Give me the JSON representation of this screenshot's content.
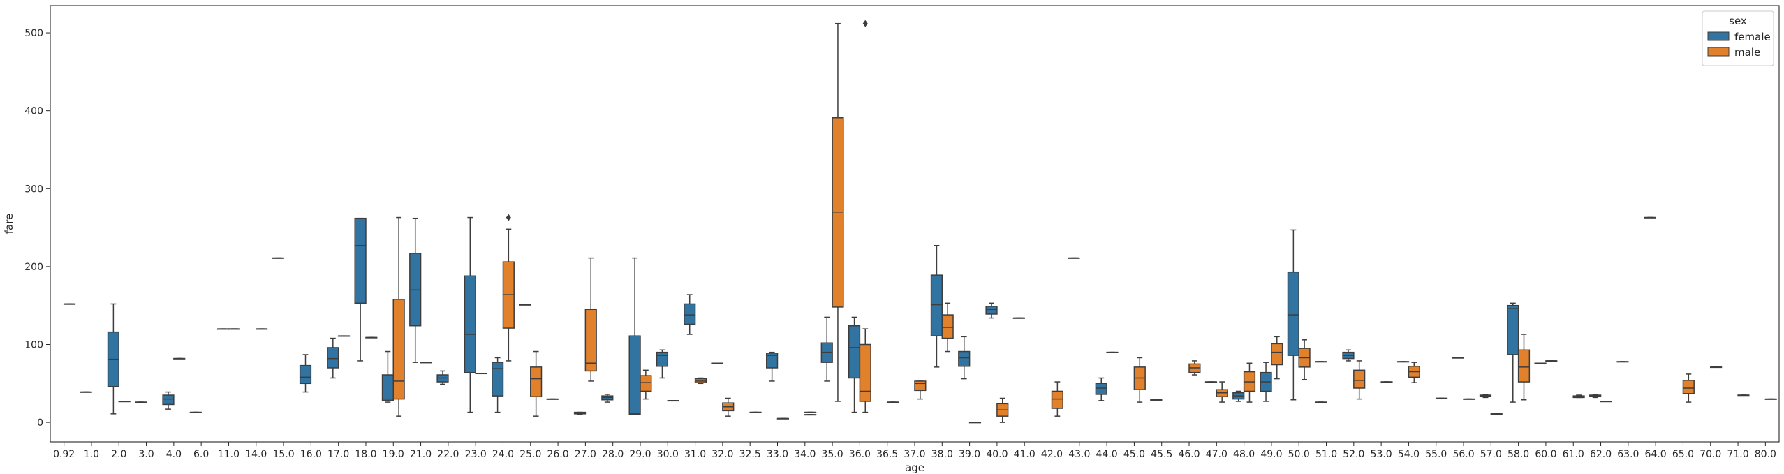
{
  "chart_data": {
    "type": "box",
    "xlabel": "age",
    "ylabel": "fare",
    "ylim": [
      -25,
      535
    ],
    "yticks": [
      0,
      100,
      200,
      300,
      400,
      500
    ],
    "categories": [
      "0.92",
      "1.0",
      "2.0",
      "3.0",
      "4.0",
      "6.0",
      "11.0",
      "14.0",
      "15.0",
      "16.0",
      "17.0",
      "18.0",
      "19.0",
      "21.0",
      "22.0",
      "23.0",
      "24.0",
      "25.0",
      "26.0",
      "27.0",
      "28.0",
      "29.0",
      "30.0",
      "31.0",
      "32.0",
      "32.5",
      "33.0",
      "34.0",
      "35.0",
      "36.0",
      "36.5",
      "37.0",
      "38.0",
      "39.0",
      "40.0",
      "41.0",
      "42.0",
      "43.0",
      "44.0",
      "45.0",
      "45.5",
      "46.0",
      "47.0",
      "48.0",
      "49.0",
      "50.0",
      "51.0",
      "52.0",
      "53.0",
      "54.0",
      "55.0",
      "56.0",
      "57.0",
      "58.0",
      "60.0",
      "61.0",
      "62.0",
      "63.0",
      "64.0",
      "65.0",
      "70.0",
      "71.0",
      "80.0"
    ],
    "legend": {
      "title": "sex",
      "position": "top-right"
    },
    "colors": {
      "female": "#3274a1",
      "male": "#e1812c"
    },
    "series": [
      {
        "name": "female",
        "boxes": [
          {
            "x": "1.0",
            "q1": 39,
            "med": 39,
            "q3": 39,
            "wlo": 39,
            "whi": 39
          },
          {
            "x": "2.0",
            "q1": 46,
            "med": 81,
            "q3": 116,
            "wlo": 11,
            "whi": 152
          },
          {
            "x": "3.0",
            "q1": 26,
            "med": 26,
            "q3": 26,
            "wlo": 26,
            "whi": 26
          },
          {
            "x": "4.0",
            "q1": 23,
            "med": 30,
            "q3": 35,
            "wlo": 17,
            "whi": 39
          },
          {
            "x": "6.0",
            "q1": 13,
            "med": 13,
            "q3": 13,
            "wlo": 13,
            "whi": 13
          },
          {
            "x": "11.0",
            "q1": 120,
            "med": 120,
            "q3": 120,
            "wlo": 120,
            "whi": 120
          },
          {
            "x": "15.0",
            "q1": 211,
            "med": 211,
            "q3": 211,
            "wlo": 211,
            "whi": 211
          },
          {
            "x": "16.0",
            "q1": 50,
            "med": 58,
            "q3": 73,
            "wlo": 39,
            "whi": 87
          },
          {
            "x": "17.0",
            "q1": 70,
            "med": 82,
            "q3": 96,
            "wlo": 57,
            "whi": 108
          },
          {
            "x": "18.0",
            "q1": 153,
            "med": 227,
            "q3": 262,
            "wlo": 79,
            "whi": 262
          },
          {
            "x": "19.0",
            "q1": 28,
            "med": 30,
            "q3": 61,
            "wlo": 26,
            "whi": 91
          },
          {
            "x": "21.0",
            "q1": 124,
            "med": 170,
            "q3": 217,
            "wlo": 77,
            "whi": 262
          },
          {
            "x": "22.0",
            "q1": 52,
            "med": 57,
            "q3": 61,
            "wlo": 49,
            "whi": 66
          },
          {
            "x": "23.0",
            "q1": 64,
            "med": 113,
            "q3": 188,
            "wlo": 13,
            "whi": 263
          },
          {
            "x": "24.0",
            "q1": 34,
            "med": 69,
            "q3": 77,
            "wlo": 13,
            "whi": 83
          },
          {
            "x": "26.0",
            "q1": 30,
            "med": 30,
            "q3": 30,
            "wlo": 30,
            "whi": 30
          },
          {
            "x": "27.0",
            "q1": 11,
            "med": 12,
            "q3": 13,
            "wlo": 10,
            "whi": 13
          },
          {
            "x": "28.0",
            "q1": 29,
            "med": 32,
            "q3": 34,
            "wlo": 26,
            "whi": 36
          },
          {
            "x": "29.0",
            "q1": 10,
            "med": 11,
            "q3": 111,
            "wlo": 10,
            "whi": 211
          },
          {
            "x": "30.0",
            "q1": 72,
            "med": 86,
            "q3": 90,
            "wlo": 57,
            "whi": 93
          },
          {
            "x": "31.0",
            "q1": 126,
            "med": 138,
            "q3": 152,
            "wlo": 113,
            "whi": 164
          },
          {
            "x": "33.0",
            "q1": 70,
            "med": 86,
            "q3": 89,
            "wlo": 53,
            "whi": 90
          },
          {
            "x": "35.0",
            "q1": 77,
            "med": 90,
            "q3": 102,
            "wlo": 53,
            "whi": 135
          },
          {
            "x": "36.0",
            "q1": 57,
            "med": 96,
            "q3": 124,
            "wlo": 13,
            "whi": 135
          },
          {
            "x": "38.0",
            "q1": 111,
            "med": 151,
            "q3": 189,
            "wlo": 71,
            "whi": 227
          },
          {
            "x": "39.0",
            "q1": 72,
            "med": 83,
            "q3": 91,
            "wlo": 56,
            "whi": 110
          },
          {
            "x": "40.0",
            "q1": 139,
            "med": 145,
            "q3": 149,
            "wlo": 134,
            "whi": 153
          },
          {
            "x": "41.0",
            "q1": 134,
            "med": 134,
            "q3": 134,
            "wlo": 134,
            "whi": 134
          },
          {
            "x": "43.0",
            "q1": 211,
            "med": 211,
            "q3": 211,
            "wlo": 211,
            "whi": 211
          },
          {
            "x": "44.0",
            "q1": 36,
            "med": 44,
            "q3": 50,
            "wlo": 28,
            "whi": 57
          },
          {
            "x": "45.5",
            "q1": 29,
            "med": 29,
            "q3": 29,
            "wlo": 29,
            "whi": 29
          },
          {
            "x": "48.0",
            "q1": 30,
            "med": 34,
            "q3": 38,
            "wlo": 27,
            "whi": 40
          },
          {
            "x": "49.0",
            "q1": 40,
            "med": 52,
            "q3": 64,
            "wlo": 27,
            "whi": 77
          },
          {
            "x": "50.0",
            "q1": 86,
            "med": 138,
            "q3": 193,
            "wlo": 29,
            "whi": 247
          },
          {
            "x": "51.0",
            "q1": 78,
            "med": 78,
            "q3": 78,
            "wlo": 78,
            "whi": 78
          },
          {
            "x": "52.0",
            "q1": 82,
            "med": 86,
            "q3": 90,
            "wlo": 79,
            "whi": 93
          },
          {
            "x": "54.0",
            "q1": 78,
            "med": 78,
            "q3": 78,
            "wlo": 78,
            "whi": 78
          },
          {
            "x": "56.0",
            "q1": 83,
            "med": 83,
            "q3": 83,
            "wlo": 83,
            "whi": 83
          },
          {
            "x": "57.0",
            "q1": 33,
            "med": 34,
            "q3": 35,
            "wlo": 32,
            "whi": 36
          },
          {
            "x": "58.0",
            "q1": 87,
            "med": 146,
            "q3": 150,
            "wlo": 26,
            "whi": 153
          },
          {
            "x": "60.0",
            "q1": 76,
            "med": 76,
            "q3": 76,
            "wlo": 76,
            "whi": 76
          },
          {
            "x": "62.0",
            "q1": 33,
            "med": 34,
            "q3": 35,
            "wlo": 32,
            "whi": 36
          },
          {
            "x": "63.0",
            "q1": 78,
            "med": 78,
            "q3": 78,
            "wlo": 78,
            "whi": 78
          },
          {
            "x": "64.0",
            "q1": 263,
            "med": 263,
            "q3": 263,
            "wlo": 263,
            "whi": 263
          }
        ]
      },
      {
        "name": "male",
        "boxes": [
          {
            "x": "0.92",
            "q1": 152,
            "med": 152,
            "q3": 152,
            "wlo": 152,
            "whi": 152
          },
          {
            "x": "2.0",
            "q1": 27,
            "med": 27,
            "q3": 27,
            "wlo": 27,
            "whi": 27
          },
          {
            "x": "4.0",
            "q1": 82,
            "med": 82,
            "q3": 82,
            "wlo": 82,
            "whi": 82
          },
          {
            "x": "11.0",
            "q1": 120,
            "med": 120,
            "q3": 120,
            "wlo": 120,
            "whi": 120
          },
          {
            "x": "14.0",
            "q1": 120,
            "med": 120,
            "q3": 120,
            "wlo": 120,
            "whi": 120
          },
          {
            "x": "17.0",
            "q1": 111,
            "med": 111,
            "q3": 111,
            "wlo": 111,
            "whi": 111
          },
          {
            "x": "18.0",
            "q1": 109,
            "med": 109,
            "q3": 109,
            "wlo": 109,
            "whi": 109
          },
          {
            "x": "19.0",
            "q1": 30,
            "med": 53,
            "q3": 158,
            "wlo": 8,
            "whi": 263
          },
          {
            "x": "21.0",
            "q1": 77,
            "med": 77,
            "q3": 77,
            "wlo": 77,
            "whi": 77
          },
          {
            "x": "23.0",
            "q1": 63,
            "med": 63,
            "q3": 63,
            "wlo": 63,
            "whi": 63
          },
          {
            "x": "24.0",
            "q1": 121,
            "med": 164,
            "q3": 206,
            "wlo": 79,
            "whi": 248,
            "outliers": [
              263
            ]
          },
          {
            "x": "25.0",
            "q1": 33,
            "med": 56,
            "q3": 71,
            "wlo": 8,
            "whi": 91
          },
          {
            "x": "25.0",
            "q1": 151,
            "med": 151,
            "q3": 151,
            "wlo": 151,
            "whi": 151,
            "offset": "left"
          },
          {
            "x": "27.0",
            "q1": 66,
            "med": 76,
            "q3": 145,
            "wlo": 53,
            "whi": 211
          },
          {
            "x": "29.0",
            "q1": 40,
            "med": 51,
            "q3": 60,
            "wlo": 30,
            "whi": 67
          },
          {
            "x": "30.0",
            "q1": 28,
            "med": 28,
            "q3": 28,
            "wlo": 28,
            "whi": 28
          },
          {
            "x": "31.0",
            "q1": 51,
            "med": 53,
            "q3": 56,
            "wlo": 50,
            "whi": 57
          },
          {
            "x": "32.0",
            "q1": 15,
            "med": 20,
            "q3": 25,
            "wlo": 8,
            "whi": 31
          },
          {
            "x": "32.0",
            "q1": 76,
            "med": 76,
            "q3": 76,
            "wlo": 76,
            "whi": 76,
            "offset": "left"
          },
          {
            "x": "32.5",
            "q1": 13,
            "med": 13,
            "q3": 13,
            "wlo": 13,
            "whi": 13
          },
          {
            "x": "34.0",
            "q1": 10,
            "med": 10,
            "q3": 10,
            "wlo": 10,
            "whi": 10
          },
          {
            "x": "34.0",
            "q1": 13,
            "med": 13,
            "q3": 13,
            "wlo": 13,
            "whi": 13,
            "offset": "right"
          },
          {
            "x": "33.0",
            "q1": 5,
            "med": 5,
            "q3": 5,
            "wlo": 5,
            "whi": 5,
            "offset": "right"
          },
          {
            "x": "35.0",
            "q1": 148,
            "med": 270,
            "q3": 391,
            "wlo": 27,
            "whi": 512
          },
          {
            "x": "36.0",
            "q1": 27,
            "med": 40,
            "q3": 100,
            "wlo": 13,
            "whi": 120,
            "outliers": [
              512
            ]
          },
          {
            "x": "36.5",
            "q1": 26,
            "med": 26,
            "q3": 26,
            "wlo": 26,
            "whi": 26
          },
          {
            "x": "37.0",
            "q1": 41,
            "med": 50,
            "q3": 53,
            "wlo": 30,
            "whi": 53
          },
          {
            "x": "38.0",
            "q1": 108,
            "med": 122,
            "q3": 138,
            "wlo": 91,
            "whi": 153
          },
          {
            "x": "39.0",
            "q1": 0,
            "med": 0,
            "q3": 0,
            "wlo": 0,
            "whi": 0
          },
          {
            "x": "40.0",
            "q1": 8,
            "med": 16,
            "q3": 24,
            "wlo": 0,
            "whi": 31
          },
          {
            "x": "42.0",
            "q1": 18,
            "med": 30,
            "q3": 40,
            "wlo": 8,
            "whi": 52
          },
          {
            "x": "44.0",
            "q1": 90,
            "med": 90,
            "q3": 90,
            "wlo": 90,
            "whi": 90
          },
          {
            "x": "45.0",
            "q1": 42,
            "med": 57,
            "q3": 71,
            "wlo": 26,
            "whi": 83
          },
          {
            "x": "46.0",
            "q1": 64,
            "med": 70,
            "q3": 75,
            "wlo": 61,
            "whi": 79
          },
          {
            "x": "47.0",
            "q1": 33,
            "med": 38,
            "q3": 42,
            "wlo": 26,
            "whi": 52
          },
          {
            "x": "47.0",
            "q1": 52,
            "med": 52,
            "q3": 52,
            "wlo": 52,
            "whi": 52,
            "offset": "left"
          },
          {
            "x": "48.0",
            "q1": 40,
            "med": 52,
            "q3": 65,
            "wlo": 26,
            "whi": 76
          },
          {
            "x": "49.0",
            "q1": 74,
            "med": 90,
            "q3": 101,
            "wlo": 56,
            "whi": 110
          },
          {
            "x": "50.0",
            "q1": 71,
            "med": 83,
            "q3": 95,
            "wlo": 55,
            "whi": 106
          },
          {
            "x": "51.0",
            "q1": 26,
            "med": 26,
            "q3": 26,
            "wlo": 26,
            "whi": 26,
            "offset": "left"
          },
          {
            "x": "52.0",
            "q1": 44,
            "med": 54,
            "q3": 67,
            "wlo": 30,
            "whi": 79
          },
          {
            "x": "53.0",
            "q1": 52,
            "med": 52,
            "q3": 52,
            "wlo": 52,
            "whi": 52
          },
          {
            "x": "54.0",
            "q1": 58,
            "med": 65,
            "q3": 72,
            "wlo": 51,
            "whi": 77
          },
          {
            "x": "55.0",
            "q1": 31,
            "med": 31,
            "q3": 31,
            "wlo": 31,
            "whi": 31
          },
          {
            "x": "56.0",
            "q1": 30,
            "med": 30,
            "q3": 30,
            "wlo": 30,
            "whi": 30
          },
          {
            "x": "57.0",
            "q1": 11,
            "med": 11,
            "q3": 11,
            "wlo": 11,
            "whi": 11
          },
          {
            "x": "58.0",
            "q1": 52,
            "med": 71,
            "q3": 93,
            "wlo": 29,
            "whi": 113
          },
          {
            "x": "60.0",
            "q1": 79,
            "med": 79,
            "q3": 79,
            "wlo": 79,
            "whi": 79
          },
          {
            "x": "61.0",
            "q1": 32,
            "med": 33,
            "q3": 34,
            "wlo": 32,
            "whi": 35
          },
          {
            "x": "62.0",
            "q1": 27,
            "med": 27,
            "q3": 27,
            "wlo": 27,
            "whi": 27
          },
          {
            "x": "65.0",
            "q1": 37,
            "med": 44,
            "q3": 54,
            "wlo": 26,
            "whi": 62
          },
          {
            "x": "70.0",
            "q1": 71,
            "med": 71,
            "q3": 71,
            "wlo": 71,
            "whi": 71
          },
          {
            "x": "71.0",
            "q1": 35,
            "med": 35,
            "q3": 35,
            "wlo": 35,
            "whi": 35
          },
          {
            "x": "80.0",
            "q1": 30,
            "med": 30,
            "q3": 30,
            "wlo": 30,
            "whi": 30
          }
        ]
      }
    ]
  }
}
